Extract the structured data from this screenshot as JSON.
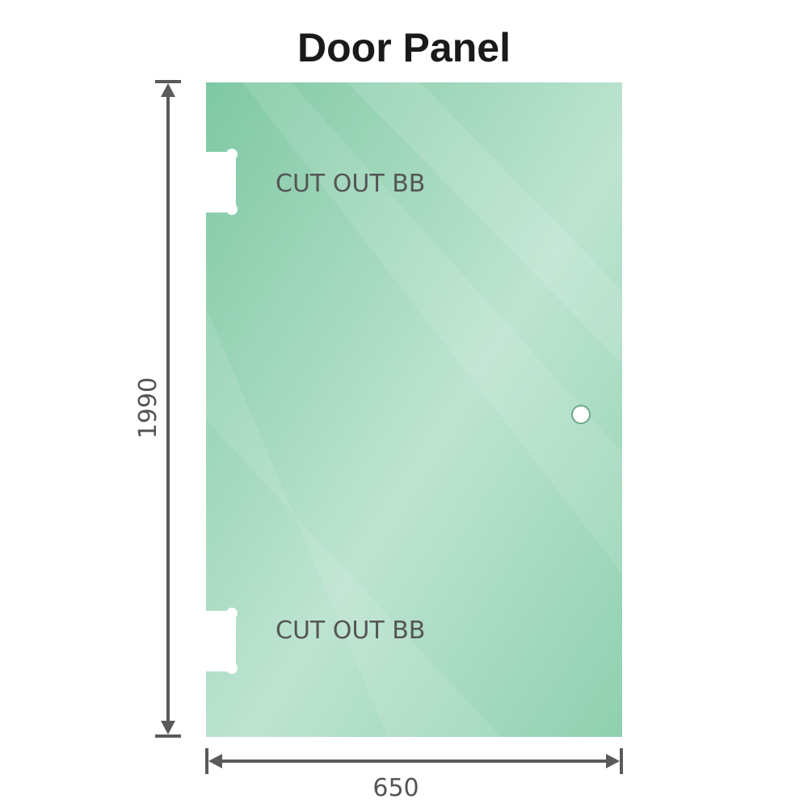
{
  "title": "Door Panel",
  "height_label": "1990",
  "width_label": "650",
  "cutout_top_label": "CUT OUT BB",
  "cutout_bottom_label": "CUT OUT BB",
  "colors": {
    "glass": "#86cba8",
    "glass_light": "#bfe5d3",
    "dimension": "#5a5a5a",
    "label": "#555555"
  }
}
